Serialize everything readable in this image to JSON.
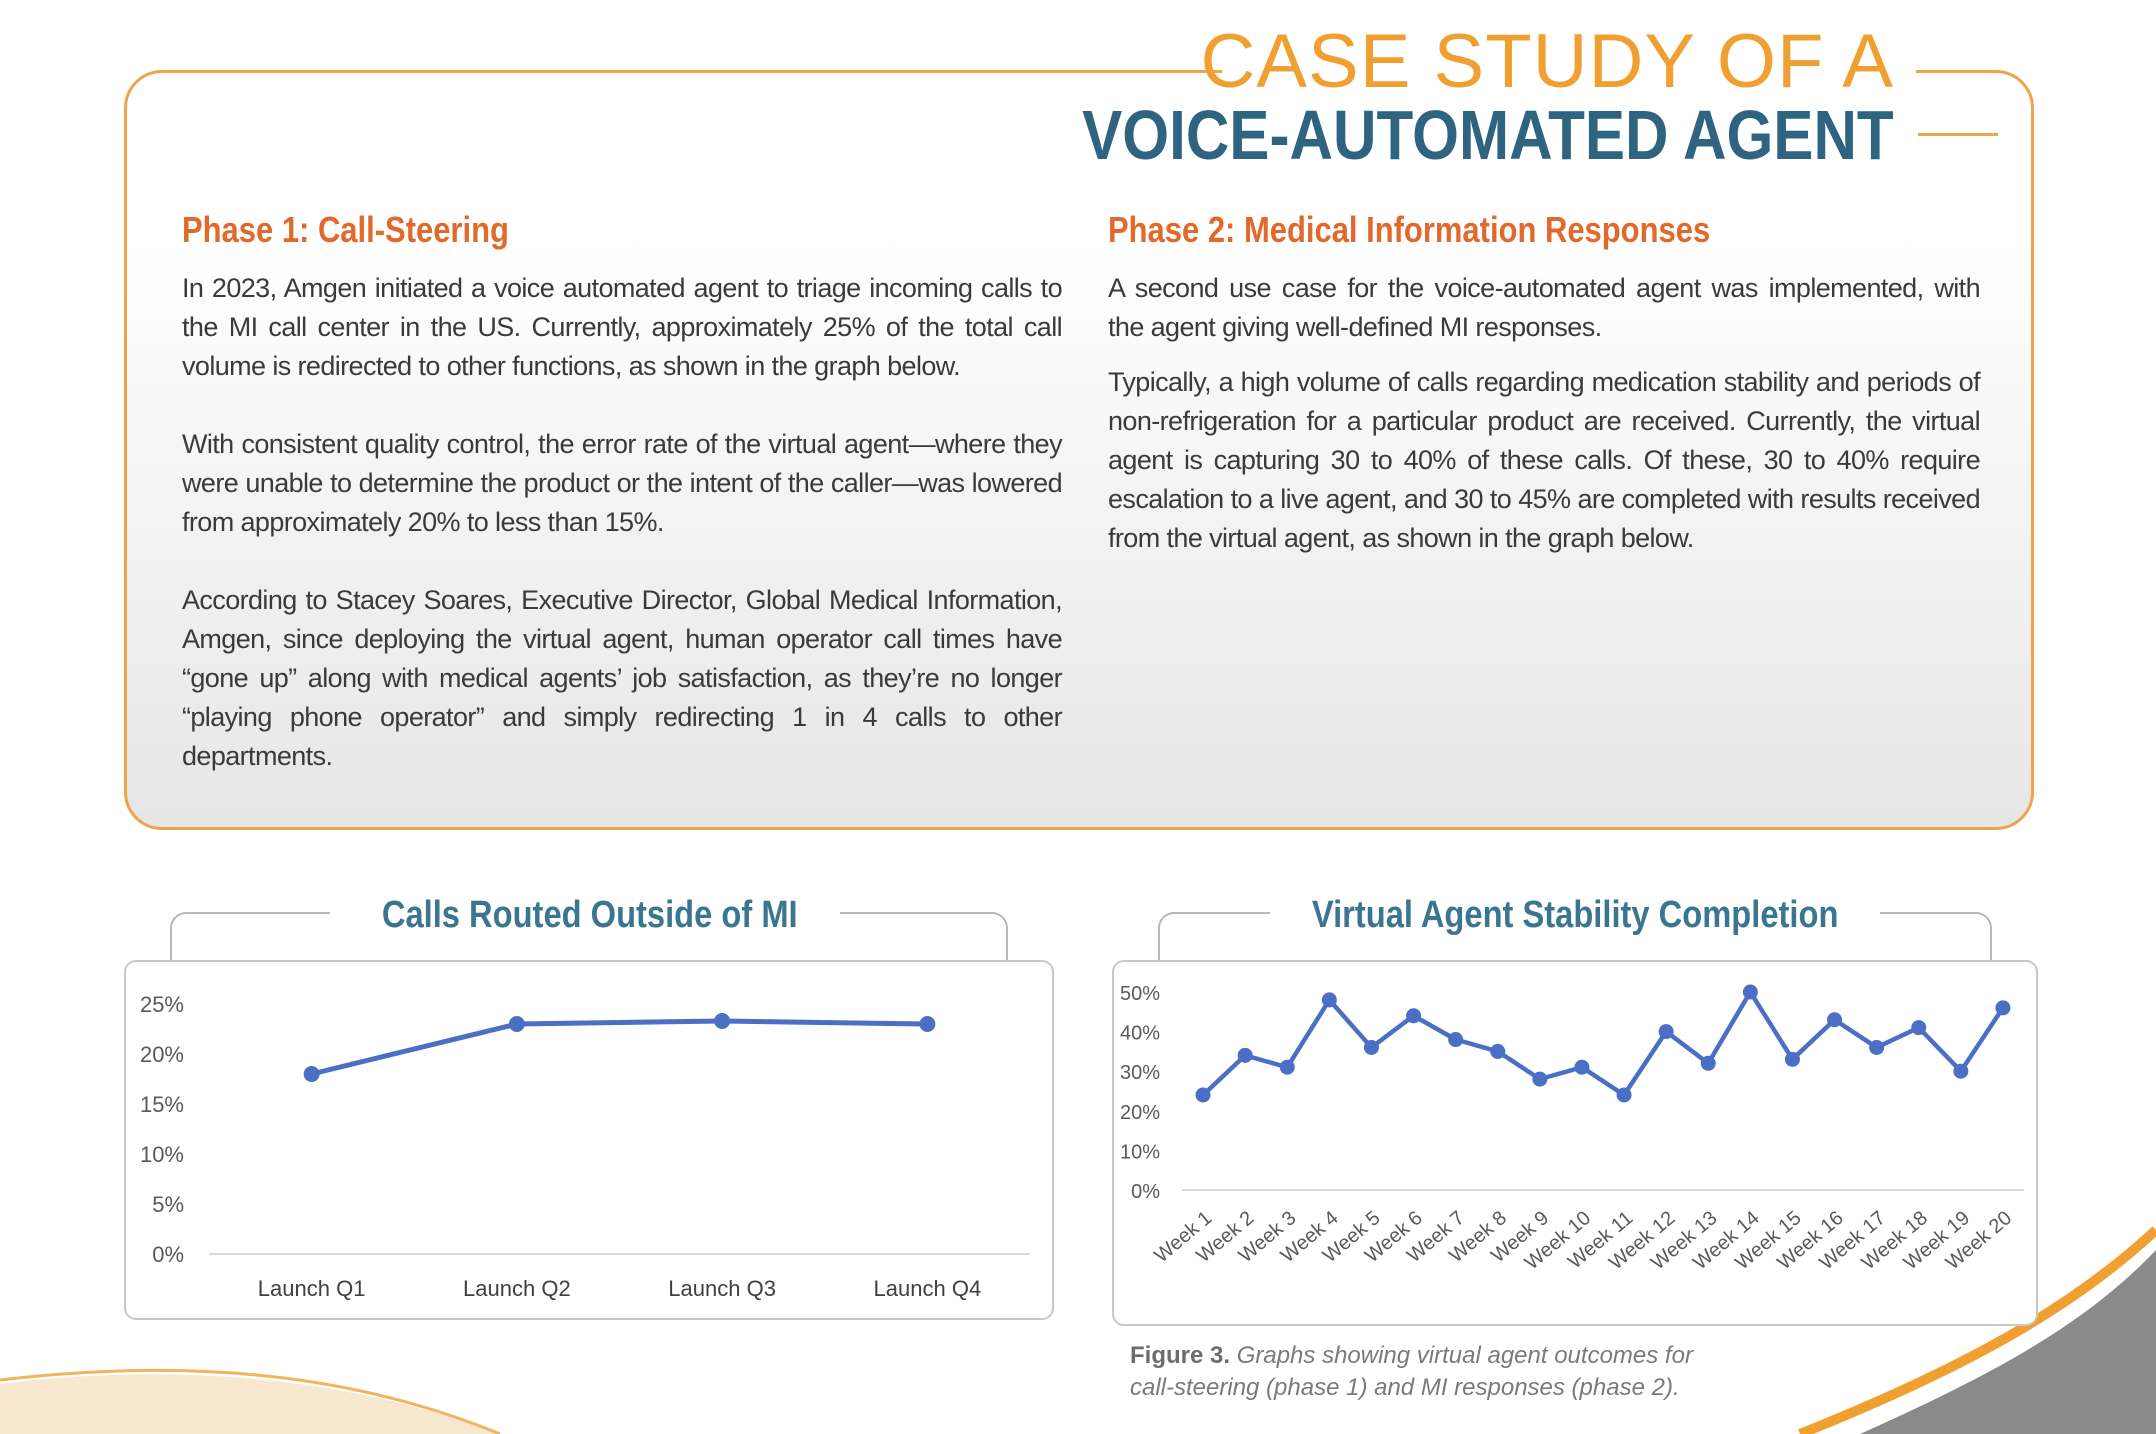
{
  "header": {
    "title_line1": "CASE STUDY OF A",
    "title_line2": "VOICE-AUTOMATED AGENT"
  },
  "phase1": {
    "heading": "Phase 1: Call-Steering",
    "paragraphs": [
      "In 2023, Amgen initiated a voice automated agent to triage incoming calls to the MI call center in the US. Currently, approximately 25% of the total call volume is redirected to other functions, as shown in the graph below.",
      "With consistent quality control, the error rate of the virtual agent—where they were unable to determine the product or the intent of the caller—was lowered from approximately 20% to less than 15%.",
      "According to Stacey Soares, Executive Director, Global Medical Information, Amgen, since deploying the virtual agent, human operator call times have “gone up” along with medical agents’ job satisfaction, as they’re no longer “playing phone operator” and simply redirecting 1 in 4 calls to other departments."
    ]
  },
  "phase2": {
    "heading": "Phase 2: Medical Information Responses",
    "paragraphs": [
      "A second use case for the voice-automated agent was implemented, with the agent giving well-defined MI responses.",
      "Typically, a high volume of calls regarding medication stability and periods of non-refrigeration for a particular product are received. Currently, the virtual agent is capturing 30 to 40% of these calls. Of these, 30 to 40% require escalation to a live agent, and 30 to 45% are completed with results received from the virtual agent, as shown in the graph below."
    ]
  },
  "chart_data": [
    {
      "type": "line",
      "title": "Calls Routed Outside of MI",
      "categories": [
        "Launch Q1",
        "Launch Q2",
        "Launch Q3",
        "Launch Q4"
      ],
      "values": [
        18,
        23,
        23.3,
        23
      ],
      "yticks": [
        "0%",
        "5%",
        "10%",
        "15%",
        "20%",
        "25%"
      ],
      "ylim": [
        0,
        25
      ],
      "xlabel": "",
      "ylabel": "",
      "color": "#4a6fc4"
    },
    {
      "type": "line",
      "title": "Virtual Agent Stability Completion",
      "categories": [
        "Week 1",
        "Week 2",
        "Week 3",
        "Week 4",
        "Week 5",
        "Week 6",
        "Week 7",
        "Week 8",
        "Week 9",
        "Week 10",
        "Week 11",
        "Week 12",
        "Week 13",
        "Week 14",
        "Week 15",
        "Week 16",
        "Week 17",
        "Week 18",
        "Week 19",
        "Week 20"
      ],
      "values": [
        24,
        34,
        31,
        48,
        36,
        44,
        38,
        35,
        28,
        31,
        24,
        40,
        32,
        50,
        33,
        43,
        36,
        41,
        30,
        46
      ],
      "yticks": [
        "0%",
        "10%",
        "20%",
        "30%",
        "40%",
        "50%"
      ],
      "ylim": [
        0,
        50
      ],
      "xlabel": "",
      "ylabel": "",
      "color": "#4a6fc4"
    }
  ],
  "caption": {
    "label": "Figure 3.",
    "text": "Graphs showing virtual agent outcomes for call-steering (phase 1) and MI responses (phase 2)."
  },
  "colors": {
    "orange_accent": "#eda44a",
    "heading_orange": "#e0692b",
    "title_blue": "#2f6480",
    "chart_title_blue": "#3a7690",
    "line_blue": "#4a6fc4"
  }
}
